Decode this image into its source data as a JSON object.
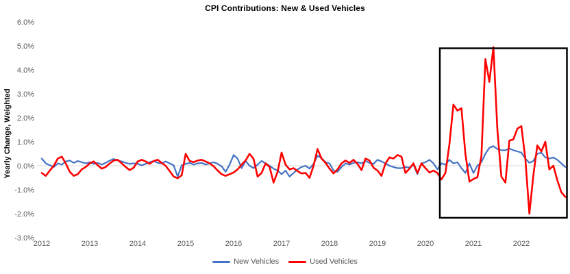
{
  "chart_data": {
    "type": "line",
    "title": "CPI Contributions: New & Used Vehicles",
    "ylabel": "Yearly Change, Weighted",
    "xlabel": "",
    "x_unit": "monthly, Jan 2012 - Dec 2022",
    "x_tick_labels": [
      "2012",
      "2013",
      "2014",
      "2015",
      "2016",
      "2017",
      "2018",
      "2019",
      "2020",
      "2021",
      "2022"
    ],
    "y_ticks": [
      {
        "value": 6,
        "label": "6.0%"
      },
      {
        "value": 5,
        "label": "5.0%"
      },
      {
        "value": 4,
        "label": "4.0%"
      },
      {
        "value": 3,
        "label": "3.0%"
      },
      {
        "value": 2,
        "label": "2.0%"
      },
      {
        "value": 1,
        "label": "1.0%"
      },
      {
        "value": 0,
        "label": "0.0%"
      },
      {
        "value": -1,
        "label": "-1.0%"
      },
      {
        "value": -2,
        "label": "-2.0%"
      },
      {
        "value": -3,
        "label": "-3.0%"
      }
    ],
    "ylim": [
      -3.0,
      6.0
    ],
    "grid": "zero line only",
    "legend_position": "bottom center",
    "colors": {
      "new_vehicles": "#4472C4",
      "used_vehicles": "#FF0000",
      "gridline": "#D9D9D9",
      "tick_text": "#595959",
      "title_text": "#000000",
      "highlight_box": "#000000",
      "background": "#FFFFFF"
    },
    "series": [
      {
        "name": "New Vehicles",
        "color": "#4472C4",
        "values": [
          0.3,
          0.1,
          0.02,
          -0.05,
          0.1,
          0.05,
          0.18,
          0.22,
          0.12,
          0.2,
          0.15,
          0.1,
          0.15,
          0.08,
          0.12,
          0.05,
          0.12,
          0.22,
          0.28,
          0.22,
          0.18,
          0.12,
          0.08,
          0.1,
          0.08,
          0.02,
          0.08,
          0.15,
          0.2,
          0.12,
          0.1,
          0.18,
          0.1,
          0.02,
          -0.45,
          0.02,
          0.08,
          0.12,
          0.05,
          0.1,
          0.12,
          0.05,
          0.1,
          0.15,
          0.08,
          -0.02,
          -0.25,
          0.05,
          0.45,
          0.3,
          -0.1,
          0.2,
          0.0,
          -0.1,
          0.05,
          0.2,
          0.1,
          0.0,
          -0.12,
          -0.2,
          -0.35,
          -0.2,
          -0.45,
          -0.3,
          -0.15,
          -0.05,
          0.0,
          -0.12,
          0.08,
          0.42,
          0.32,
          0.15,
          0.1,
          -0.2,
          -0.25,
          -0.05,
          0.1,
          0.05,
          0.12,
          0.15,
          0.1,
          0.2,
          0.12,
          0.08,
          0.25,
          0.18,
          0.1,
          0.0,
          -0.05,
          -0.1,
          -0.1,
          -0.05,
          -0.08,
          0.05,
          -0.35,
          0.1,
          0.15,
          0.25,
          0.1,
          -0.15,
          0.1,
          0.05,
          0.25,
          0.1,
          0.15,
          -0.1,
          -0.3,
          0.1,
          -0.3,
          0.0,
          0.15,
          0.5,
          0.75,
          0.82,
          0.7,
          0.65,
          0.65,
          0.72,
          0.65,
          0.6,
          0.55,
          0.3,
          0.12,
          0.2,
          0.5,
          0.55,
          0.35,
          0.3,
          0.35,
          0.25,
          0.1,
          -0.05
        ]
      },
      {
        "name": "Used Vehicles",
        "color": "#FF0000",
        "values": [
          -0.3,
          -0.42,
          -0.2,
          0.0,
          0.3,
          0.38,
          0.1,
          -0.25,
          -0.42,
          -0.35,
          -0.15,
          -0.05,
          0.1,
          0.18,
          0.02,
          -0.12,
          -0.05,
          0.1,
          0.22,
          0.25,
          0.1,
          -0.05,
          -0.18,
          -0.08,
          0.18,
          0.25,
          0.18,
          0.08,
          0.2,
          0.25,
          0.12,
          0.0,
          -0.22,
          -0.45,
          -0.52,
          -0.4,
          0.5,
          0.2,
          0.15,
          0.22,
          0.25,
          0.18,
          0.1,
          -0.02,
          -0.2,
          -0.35,
          -0.42,
          -0.35,
          -0.28,
          -0.15,
          0.05,
          0.22,
          0.5,
          0.28,
          -0.45,
          -0.3,
          0.1,
          -0.05,
          -0.7,
          -0.25,
          0.55,
          0.05,
          -0.15,
          -0.1,
          -0.22,
          -0.32,
          -0.3,
          -0.5,
          0.0,
          0.7,
          0.3,
          0.12,
          -0.12,
          -0.32,
          -0.15,
          0.1,
          0.22,
          0.12,
          0.25,
          0.08,
          -0.18,
          0.3,
          0.22,
          -0.08,
          -0.2,
          -0.42,
          0.1,
          0.35,
          0.3,
          0.45,
          0.38,
          -0.3,
          -0.12,
          0.1,
          -0.3,
          0.1,
          -0.1,
          -0.28,
          -0.2,
          -0.3,
          -0.57,
          -0.3,
          0.9,
          2.55,
          2.3,
          2.4,
          0.5,
          -0.66,
          -0.55,
          -0.48,
          0.4,
          4.45,
          3.5,
          4.95,
          1.5,
          -0.45,
          -0.7,
          1.05,
          1.1,
          1.55,
          1.65,
          0.3,
          -2.0,
          -0.4,
          0.85,
          0.6,
          1.0,
          -0.15,
          0.0,
          -0.6,
          -1.1,
          -1.3
        ]
      }
    ],
    "highlight_box": {
      "x_from_year": 2020.3,
      "x_to_year": 2022.95,
      "y_from": -2.17,
      "y_to": 4.9,
      "color": "#000000"
    }
  }
}
